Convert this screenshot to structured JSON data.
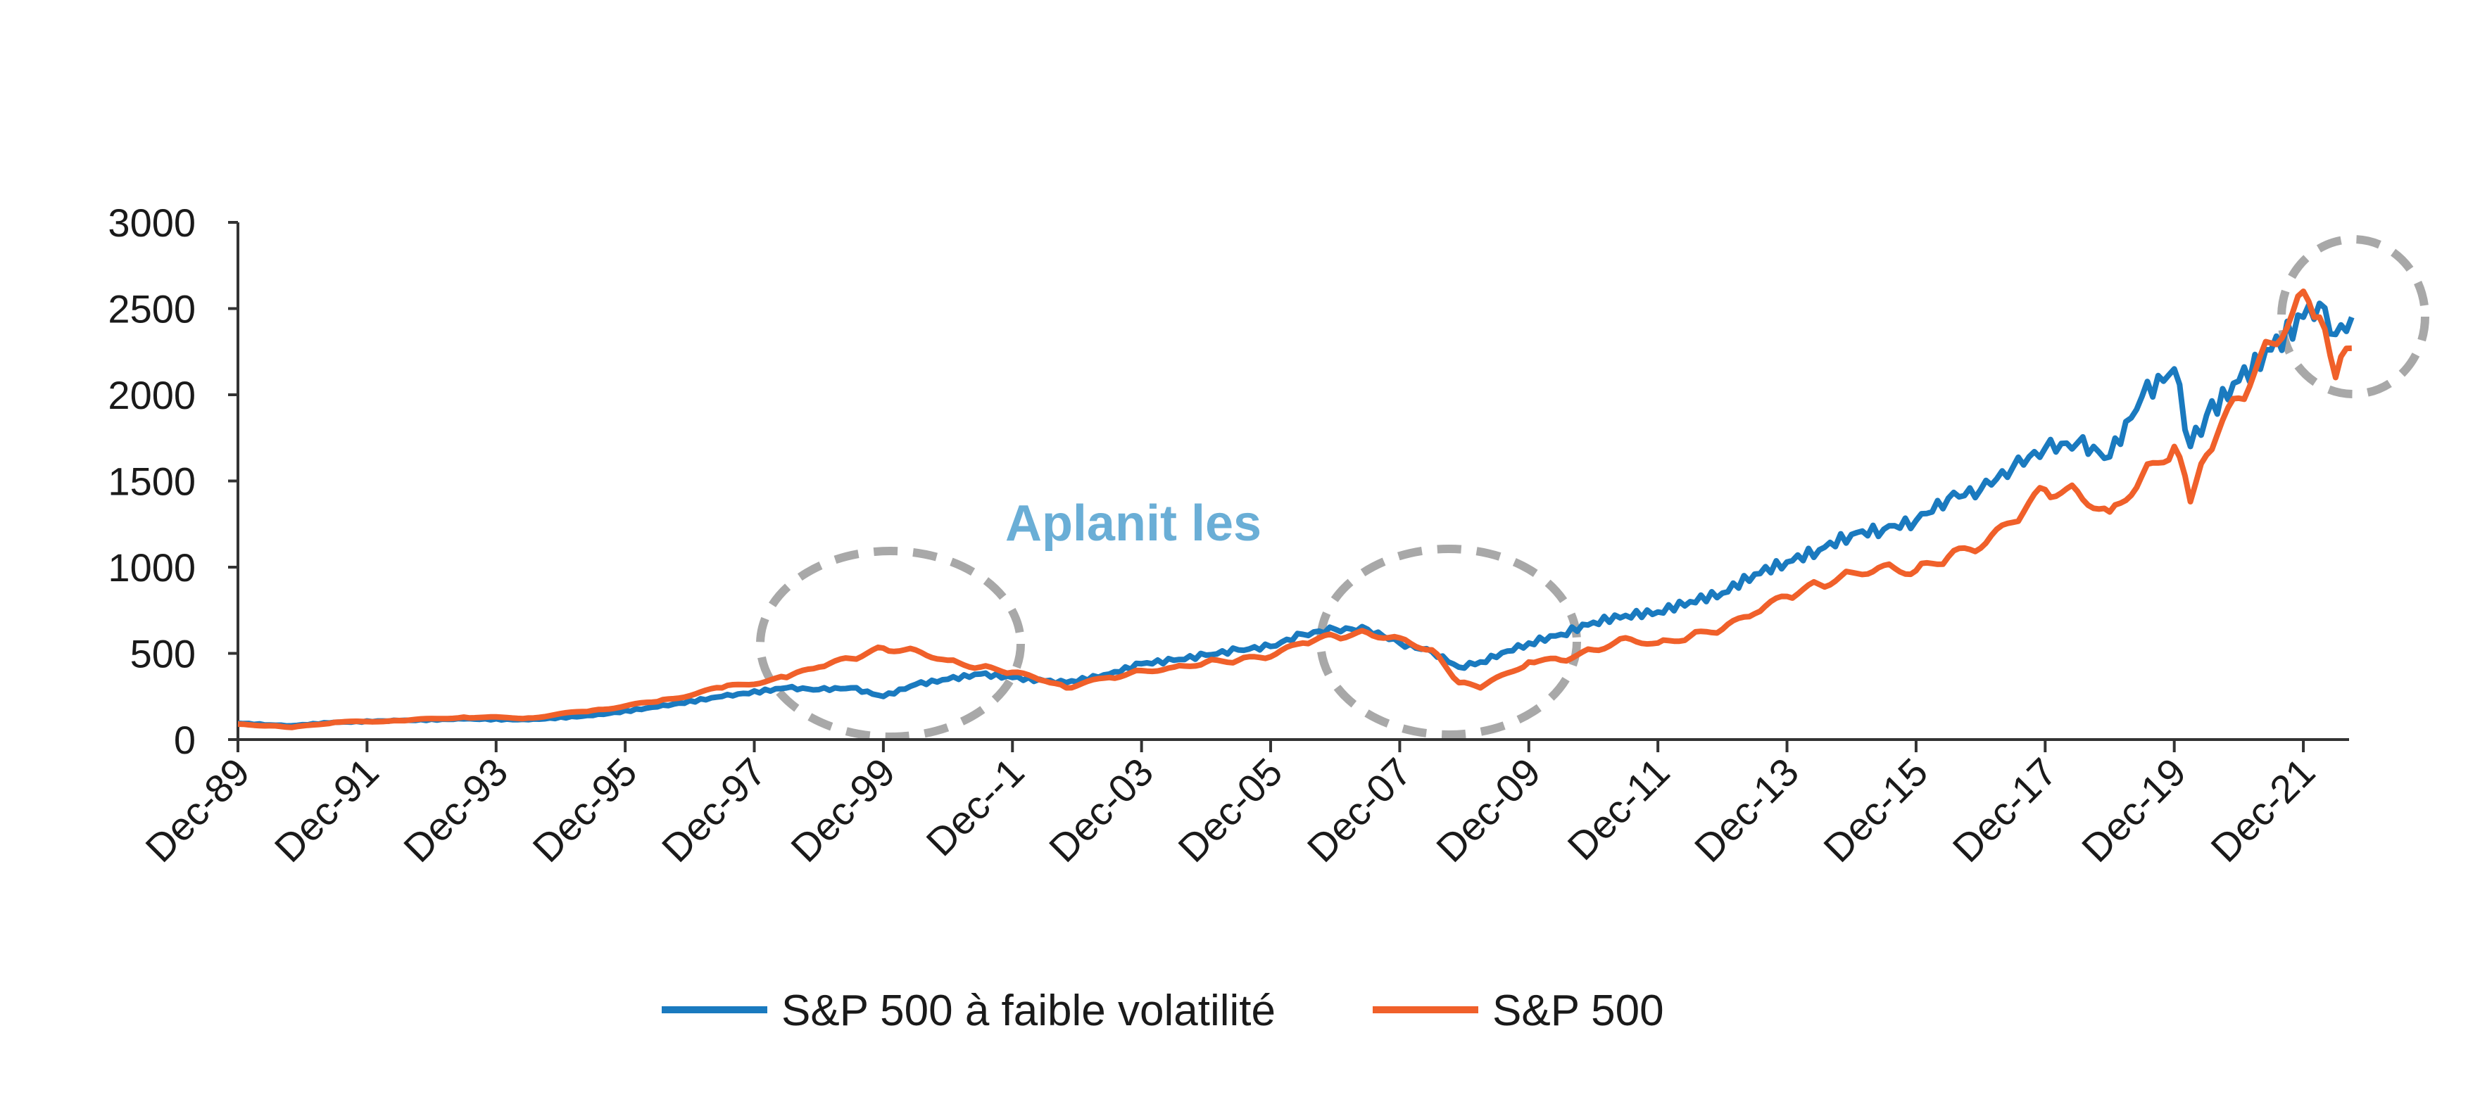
{
  "chart_data": {
    "type": "line",
    "title": "",
    "xlabel": "",
    "ylabel": "",
    "ylim": [
      0,
      3000
    ],
    "yticks": [
      "0",
      "500",
      "1000",
      "1500",
      "2000",
      "2500",
      "3000"
    ],
    "xticks": [
      "Dec-89",
      "Dec-91",
      "Dec-93",
      "Dec-95",
      "Dec-97",
      "Dec-99",
      "Dec--1",
      "Dec-03",
      "Dec-05",
      "Dec-07",
      "Dec-09",
      "Dec-11",
      "Dec-13",
      "Dec-15",
      "Dec-17",
      "Dec-19",
      "Dec-21"
    ],
    "x_range": [
      "1989-12",
      "2022-06"
    ],
    "grid": false,
    "legend_position": "bottom",
    "annotation": "Aplanit les",
    "highlighted_periods": [
      "1998–2001",
      "2007–2009",
      "2021–2022"
    ],
    "series": [
      {
        "name": "S&P 500 à faible volatilité",
        "color": "#1a7abf",
        "points": [
          [
            "1989-12",
            95
          ],
          [
            "1990-06",
            85
          ],
          [
            "1990-10",
            80
          ],
          [
            "1991-06",
            100
          ],
          [
            "1992-06",
            110
          ],
          [
            "1993-06",
            120
          ],
          [
            "1994-06",
            115
          ],
          [
            "1995-06",
            140
          ],
          [
            "1996-06",
            190
          ],
          [
            "1997-06",
            250
          ],
          [
            "1998-06",
            300
          ],
          [
            "1998-12",
            290
          ],
          [
            "1999-06",
            300
          ],
          [
            "1999-12",
            250
          ],
          [
            "2000-06",
            320
          ],
          [
            "2000-12",
            350
          ],
          [
            "2001-06",
            380
          ],
          [
            "2001-12",
            360
          ],
          [
            "2002-06",
            340
          ],
          [
            "2002-10",
            330
          ],
          [
            "2003-06",
            380
          ],
          [
            "2003-12",
            440
          ],
          [
            "2004-06",
            460
          ],
          [
            "2004-12",
            490
          ],
          [
            "2005-06",
            520
          ],
          [
            "2005-12",
            540
          ],
          [
            "2006-06",
            610
          ],
          [
            "2006-12",
            640
          ],
          [
            "2007-06",
            640
          ],
          [
            "2007-12",
            560
          ],
          [
            "2008-06",
            510
          ],
          [
            "2008-11",
            420
          ],
          [
            "2009-03",
            450
          ],
          [
            "2009-12",
            560
          ],
          [
            "2010-06",
            610
          ],
          [
            "2010-12",
            680
          ],
          [
            "2011-06",
            720
          ],
          [
            "2011-12",
            740
          ],
          [
            "2012-06",
            800
          ],
          [
            "2012-12",
            850
          ],
          [
            "2013-06",
            960
          ],
          [
            "2013-12",
            1030
          ],
          [
            "2014-06",
            1100
          ],
          [
            "2014-12",
            1190
          ],
          [
            "2015-06",
            1220
          ],
          [
            "2015-12",
            1270
          ],
          [
            "2016-06",
            1400
          ],
          [
            "2016-12",
            1450
          ],
          [
            "2017-06",
            1580
          ],
          [
            "2017-12",
            1690
          ],
          [
            "2018-06",
            1720
          ],
          [
            "2018-12",
            1640
          ],
          [
            "2019-06",
            1990
          ],
          [
            "2019-12",
            2150
          ],
          [
            "2020-03",
            1700
          ],
          [
            "2020-06",
            1880
          ],
          [
            "2020-12",
            2080
          ],
          [
            "2021-06",
            2260
          ],
          [
            "2021-12",
            2450
          ],
          [
            "2022-03",
            2530
          ],
          [
            "2022-06",
            2350
          ],
          [
            "2022-09",
            2450
          ]
        ]
      },
      {
        "name": "S&P 500",
        "color": "#f0602a",
        "points": [
          [
            "1989-12",
            90
          ],
          [
            "1990-06",
            80
          ],
          [
            "1990-10",
            70
          ],
          [
            "1991-06",
            100
          ],
          [
            "1992-06",
            110
          ],
          [
            "1993-06",
            130
          ],
          [
            "1994-06",
            125
          ],
          [
            "1995-06",
            170
          ],
          [
            "1996-06",
            220
          ],
          [
            "1997-06",
            300
          ],
          [
            "1998-06",
            360
          ],
          [
            "1998-12",
            420
          ],
          [
            "1999-06",
            470
          ],
          [
            "1999-12",
            530
          ],
          [
            "2000-06",
            520
          ],
          [
            "2000-12",
            460
          ],
          [
            "2001-06",
            420
          ],
          [
            "2001-12",
            390
          ],
          [
            "2002-06",
            340
          ],
          [
            "2002-10",
            300
          ],
          [
            "2003-06",
            360
          ],
          [
            "2003-12",
            400
          ],
          [
            "2004-06",
            420
          ],
          [
            "2004-12",
            450
          ],
          [
            "2005-06",
            460
          ],
          [
            "2005-12",
            480
          ],
          [
            "2006-06",
            560
          ],
          [
            "2006-12",
            600
          ],
          [
            "2007-06",
            620
          ],
          [
            "2007-12",
            590
          ],
          [
            "2008-06",
            520
          ],
          [
            "2008-11",
            330
          ],
          [
            "2009-03",
            300
          ],
          [
            "2009-12",
            450
          ],
          [
            "2010-06",
            460
          ],
          [
            "2010-12",
            520
          ],
          [
            "2011-06",
            590
          ],
          [
            "2011-12",
            560
          ],
          [
            "2012-06",
            600
          ],
          [
            "2012-12",
            640
          ],
          [
            "2013-06",
            730
          ],
          [
            "2013-12",
            830
          ],
          [
            "2014-06",
            900
          ],
          [
            "2014-12",
            970
          ],
          [
            "2015-06",
            1010
          ],
          [
            "2015-12",
            980
          ],
          [
            "2016-06",
            1060
          ],
          [
            "2016-12",
            1110
          ],
          [
            "2017-06",
            1260
          ],
          [
            "2017-12",
            1450
          ],
          [
            "2018-06",
            1440
          ],
          [
            "2018-12",
            1320
          ],
          [
            "2019-06",
            1530
          ],
          [
            "2019-12",
            1700
          ],
          [
            "2020-03",
            1380
          ],
          [
            "2020-06",
            1650
          ],
          [
            "2020-12",
            1980
          ],
          [
            "2021-06",
            2300
          ],
          [
            "2021-12",
            2600
          ],
          [
            "2022-03",
            2450
          ],
          [
            "2022-06",
            2100
          ],
          [
            "2022-09",
            2270
          ]
        ]
      }
    ]
  }
}
